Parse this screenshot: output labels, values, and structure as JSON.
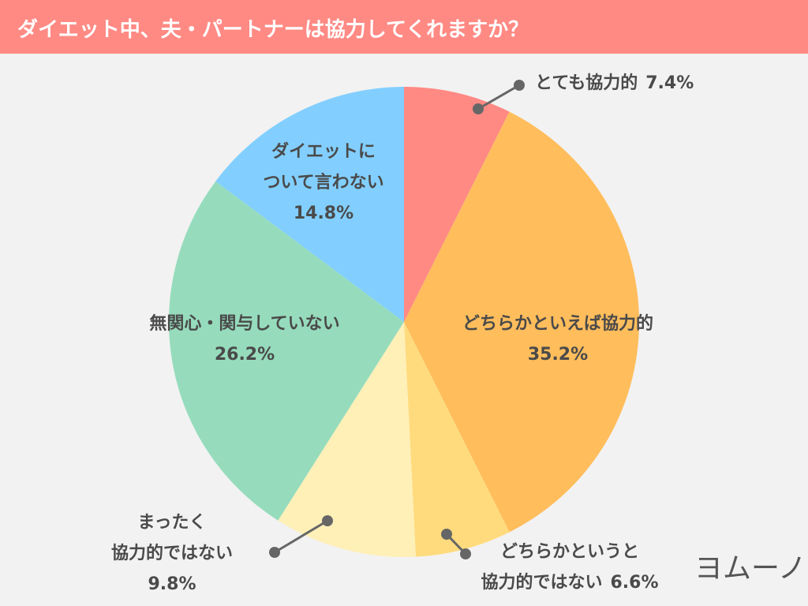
{
  "chart_data": {
    "type": "pie",
    "title": "ダイエット中、夫・パートナーは協力してくれますか？",
    "categories": [
      [
        "とても協力的"
      ],
      [
        "どちらかといえば協力的"
      ],
      [
        "どちらかというと",
        "協力的ではない"
      ],
      [
        "まったく",
        "協力的ではない"
      ],
      [
        "無関心・関与していない"
      ],
      [
        "ダイエットに",
        "ついて言わない"
      ]
    ],
    "values": [
      7.4,
      35.2,
      6.6,
      9.8,
      26.2,
      14.8
    ],
    "value_labels": [
      "7.4%",
      "35.2%",
      "6.6%",
      "9.8%",
      "26.2%",
      "14.8%"
    ],
    "colors": [
      "#ff8a84",
      "#ffbd5c",
      "#ffdb7d",
      "#fff0b8",
      "#96dcbc",
      "#82cfff"
    ]
  },
  "logo": "ヨムーノ"
}
